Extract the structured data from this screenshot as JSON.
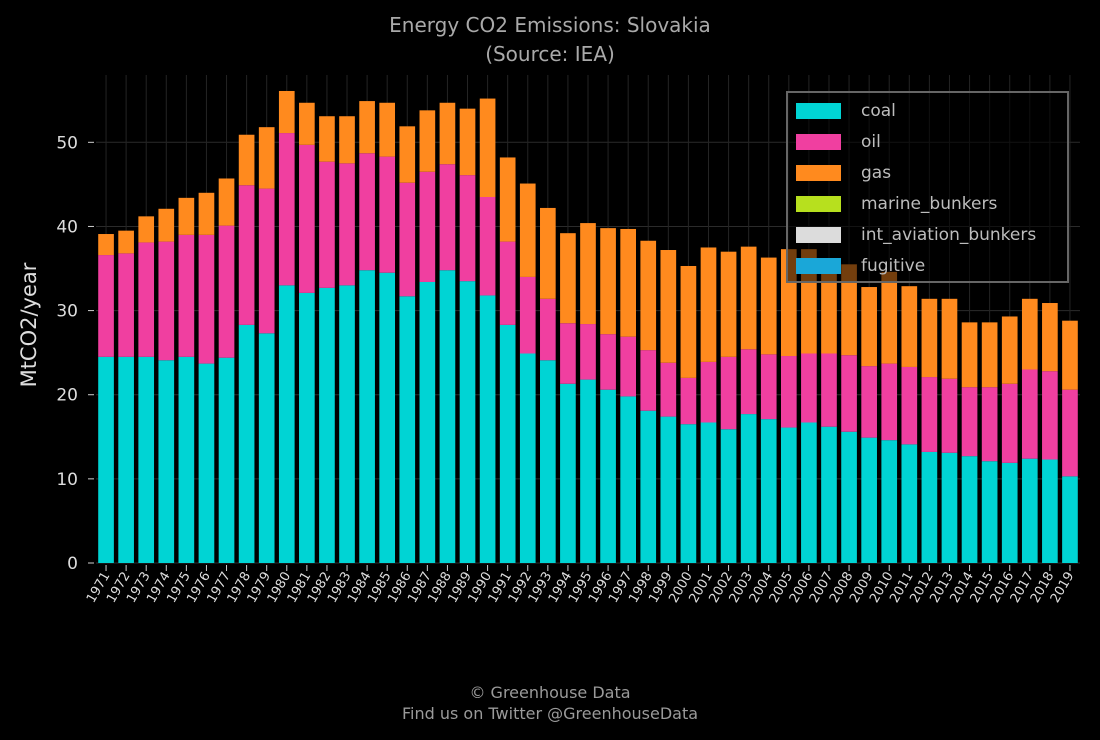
{
  "footer": {
    "copyright": "© Greenhouse Data",
    "twitter": "Find us on Twitter @GreenhouseData"
  },
  "chart_data": {
    "type": "bar",
    "stacked": true,
    "title": "Energy CO2 Emissions: Slovakia",
    "subtitle": "(Source: IEA)",
    "xlabel": "",
    "ylabel": "MtCO2/year",
    "ylim": [
      0,
      58
    ],
    "yticks": [
      0,
      10,
      20,
      30,
      40,
      50
    ],
    "grid": true,
    "legend_position": "top-right",
    "categories": [
      "1971",
      "1972",
      "1973",
      "1974",
      "1975",
      "1976",
      "1977",
      "1978",
      "1979",
      "1980",
      "1981",
      "1982",
      "1983",
      "1984",
      "1985",
      "1986",
      "1987",
      "1988",
      "1989",
      "1990",
      "1991",
      "1992",
      "1993",
      "1994",
      "1995",
      "1996",
      "1997",
      "1998",
      "1999",
      "2000",
      "2001",
      "2002",
      "2003",
      "2004",
      "2005",
      "2006",
      "2007",
      "2008",
      "2009",
      "2010",
      "2011",
      "2012",
      "2013",
      "2014",
      "2015",
      "2016",
      "2017",
      "2018",
      "2019"
    ],
    "series": [
      {
        "name": "coal",
        "color": "#00d4d4",
        "values": [
          24.5,
          24.5,
          24.5,
          24.1,
          24.5,
          23.7,
          24.4,
          28.3,
          27.3,
          33.0,
          32.1,
          32.7,
          33.0,
          34.8,
          34.5,
          31.7,
          33.4,
          34.8,
          33.5,
          31.8,
          28.3,
          24.9,
          24.1,
          21.3,
          21.8,
          20.6,
          19.8,
          18.1,
          17.4,
          16.5,
          16.7,
          15.9,
          17.7,
          17.1,
          16.1,
          16.7,
          16.2,
          15.6,
          14.9,
          14.6,
          14.1,
          13.2,
          13.1,
          12.7,
          12.1,
          11.9,
          12.4,
          12.3,
          10.3
        ]
      },
      {
        "name": "oil",
        "color": "#f03fa0",
        "values": [
          12.1,
          12.3,
          13.6,
          14.1,
          14.5,
          15.3,
          15.7,
          16.6,
          17.2,
          18.1,
          17.6,
          15.0,
          14.5,
          13.9,
          13.8,
          13.5,
          13.1,
          12.6,
          12.6,
          11.7,
          9.9,
          9.1,
          7.3,
          7.2,
          6.6,
          6.6,
          7.1,
          7.2,
          6.4,
          5.5,
          7.2,
          8.6,
          7.7,
          7.7,
          8.5,
          8.2,
          8.7,
          9.1,
          8.5,
          9.1,
          9.2,
          8.9,
          8.8,
          8.2,
          8.8,
          9.4,
          10.6,
          10.5,
          10.3
        ]
      },
      {
        "name": "gas",
        "color": "#ff8a1e",
        "values": [
          2.5,
          2.7,
          3.1,
          3.9,
          4.4,
          5.0,
          5.6,
          6.0,
          7.3,
          5.0,
          5.0,
          5.4,
          5.6,
          6.2,
          6.4,
          6.7,
          7.3,
          7.3,
          7.9,
          11.7,
          10.0,
          11.1,
          10.8,
          10.7,
          12.0,
          12.6,
          12.8,
          13.0,
          13.4,
          13.3,
          13.6,
          12.5,
          12.2,
          11.5,
          12.7,
          12.4,
          11.3,
          10.8,
          9.4,
          10.9,
          9.6,
          9.3,
          9.5,
          7.7,
          7.7,
          8.0,
          8.4,
          8.1,
          8.2
        ]
      },
      {
        "name": "marine_bunkers",
        "color": "#b7e01e",
        "values": [
          0,
          0,
          0,
          0,
          0,
          0,
          0,
          0,
          0,
          0,
          0,
          0,
          0,
          0,
          0,
          0,
          0,
          0,
          0,
          0,
          0,
          0,
          0,
          0,
          0,
          0,
          0,
          0,
          0,
          0,
          0,
          0,
          0,
          0,
          0,
          0,
          0,
          0,
          0,
          0,
          0,
          0,
          0,
          0,
          0,
          0,
          0,
          0,
          0
        ]
      },
      {
        "name": "int_aviation_bunkers",
        "color": "#dcdcdc",
        "values": [
          0,
          0,
          0,
          0,
          0,
          0,
          0,
          0,
          0,
          0,
          0,
          0,
          0,
          0,
          0,
          0,
          0,
          0,
          0,
          0,
          0,
          0,
          0,
          0,
          0,
          0,
          0,
          0,
          0,
          0,
          0,
          0,
          0,
          0,
          0,
          0,
          0,
          0,
          0,
          0,
          0,
          0,
          0,
          0,
          0,
          0,
          0,
          0,
          0
        ]
      },
      {
        "name": "fugitive",
        "color": "#1aa7d8",
        "values": [
          0,
          0,
          0,
          0,
          0,
          0,
          0,
          0,
          0,
          0,
          0,
          0,
          0,
          0,
          0,
          0,
          0,
          0,
          0,
          0,
          0,
          0,
          0,
          0,
          0,
          0,
          0,
          0,
          0,
          0,
          0,
          0,
          0,
          0,
          0,
          0,
          0,
          0,
          0,
          0,
          0,
          0,
          0,
          0,
          0,
          0,
          0,
          0,
          0
        ]
      }
    ]
  }
}
